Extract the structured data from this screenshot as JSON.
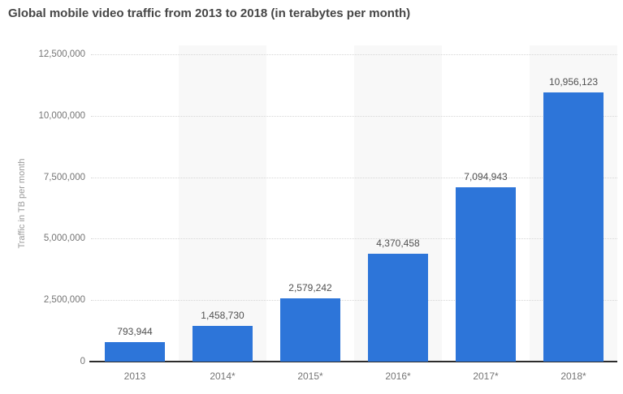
{
  "title": "Global mobile video traffic from 2013 to 2018 (in terabytes per month)",
  "chart_data": {
    "type": "bar",
    "title": "Global mobile video traffic from 2013 to 2018 (in terabytes per month)",
    "xlabel": "",
    "ylabel": "Traffic in TB per month",
    "categories": [
      "2013",
      "2014*",
      "2015*",
      "2016*",
      "2017*",
      "2018*"
    ],
    "values": [
      793944,
      1458730,
      2579242,
      4370458,
      7094943,
      10956123
    ],
    "value_labels": [
      "793,944",
      "1,458,730",
      "2,579,242",
      "4,370,458",
      "7,094,943",
      "10,956,123"
    ],
    "yticks": [
      0,
      2500000,
      5000000,
      7500000,
      10000000,
      12500000
    ],
    "ytick_labels": [
      "0",
      "2,500,000",
      "5,000,000",
      "7,500,000",
      "10,000,000",
      "12,500,000"
    ],
    "ylim": [
      0,
      12500000
    ],
    "grid": true,
    "legend_position": "none",
    "colors": {
      "bar": "#2d75d9",
      "band": "#f8f8f8",
      "gridline": "#d6d6d6",
      "axis_line": "#2c2c2c",
      "title_text": "#464646",
      "value_label_text": "#4f4f4f",
      "tick_label_text": "#757575",
      "y_axis_title_text": "#9a9a9a"
    }
  }
}
